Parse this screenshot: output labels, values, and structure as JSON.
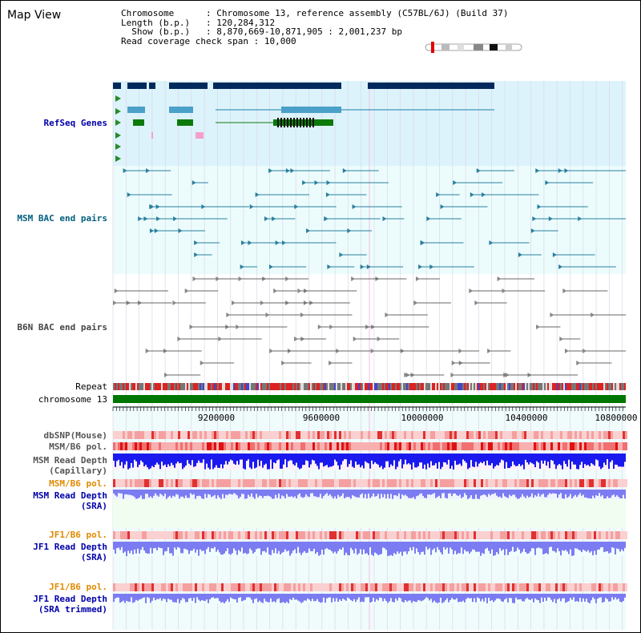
{
  "title": "Map View",
  "info": {
    "chromosome_label": "Chromosome",
    "chromosome_value": "Chromosome 13, reference assembly (C57BL/6J) (Build 37)",
    "length_label": "Length (b.p.)",
    "length_value": "120,284,312",
    "show_label": "Show (b.p.)",
    "show_value": "8,870,669-10,871,905 : 2,001,237 bp",
    "coverage_label": "Read coverage check span",
    "coverage_value": "10,000"
  },
  "tracks": {
    "refseq": "RefSeq Genes",
    "msm_bac": "MSM BAC end pairs",
    "b6n_bac": "B6N BAC end pairs",
    "repeat": "Repeat",
    "chromosome": "chromosome 13",
    "dbsnp": "dbSNP(Mouse)",
    "msm_b6_pol": "MSM/B6 pol.",
    "msm_depth_cap_1": "MSM Read Depth",
    "msm_depth_cap_2": "(Capillary)",
    "msm_b6_pol_2": "MSM/B6 pol.",
    "msm_depth_sra_1": "MSM Read Depth",
    "msm_depth_sra_2": "(SRA)",
    "jf1_b6_pol": "JF1/B6 pol.",
    "jf1_depth_1": "JF1 Read Depth",
    "jf1_depth_2": "(SRA)",
    "jf1_b6_pol_2": "JF1/B6 pol.",
    "jf1_trim_1": "JF1 Read Depth",
    "jf1_trim_2": "(SRA trimmed)"
  },
  "axis": {
    "ticks": [
      "9200000",
      "9600000",
      "10000000",
      "10400000",
      "10800000"
    ]
  },
  "colors": {
    "refseq_bg": "#ddf3fb",
    "bac_bg": "#ecfcfc",
    "chromosome": "#007700",
    "gene_dark": "#002a5c",
    "gene_mid": "#4aa0c8",
    "gene_green": "#0b7a0b",
    "msm_depth": "#1a1aee",
    "sra_depth": "#7c7cf2"
  }
}
